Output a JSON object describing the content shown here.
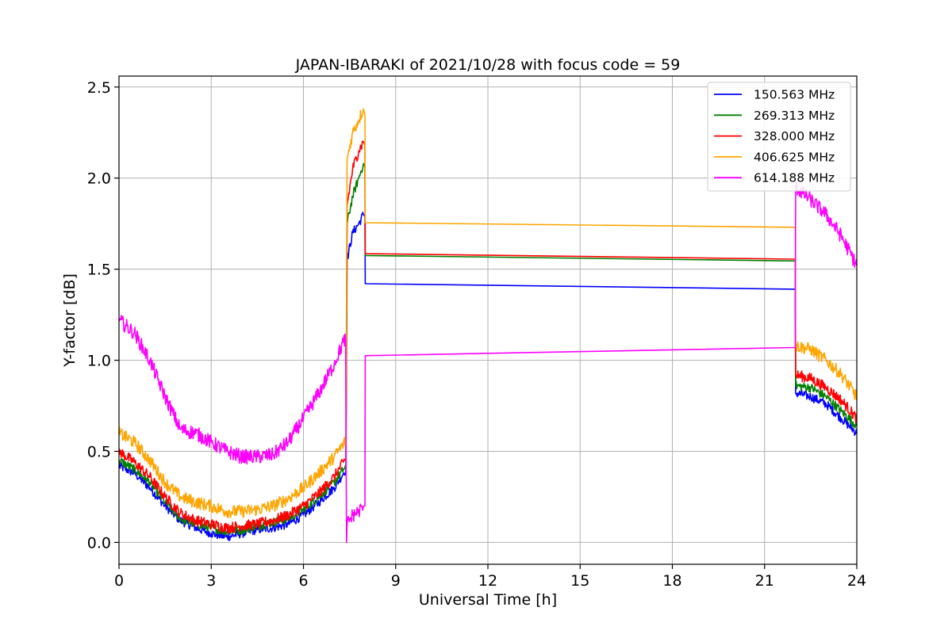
{
  "chart_data": {
    "type": "line",
    "title": "JAPAN-IBARAKI of 2021/10/28 with focus code = 59",
    "xlabel": "Universal Time [h]",
    "ylabel": "Y-factor [dB]",
    "xlim": [
      0,
      24
    ],
    "ylim": [
      -0.12,
      2.56
    ],
    "xticks": [
      0,
      3,
      6,
      9,
      12,
      15,
      18,
      21,
      24
    ],
    "xtick_labels": [
      "0",
      "3",
      "6",
      "9",
      "12",
      "15",
      "18",
      "21",
      "24"
    ],
    "yticks": [
      0.0,
      0.5,
      1.0,
      1.5,
      2.0,
      2.5
    ],
    "ytick_labels": [
      "0.0",
      "0.5",
      "1.0",
      "1.5",
      "2.0",
      "2.5"
    ],
    "grid": true,
    "legend_position": "top-right",
    "series": [
      {
        "name": "150.563 MHz",
        "color": "#0000ff",
        "noise": 0.025,
        "x": [
          0,
          0.5,
          1,
          1.5,
          2,
          2.5,
          3,
          3.5,
          4,
          4.5,
          5,
          5.5,
          6,
          6.5,
          7,
          7.3,
          7.38,
          7.42,
          7.6,
          7.8,
          7.95,
          8.0,
          8.01,
          22.0,
          22.01,
          22.5,
          23,
          23.5,
          24
        ],
        "y": [
          0.42,
          0.38,
          0.3,
          0.2,
          0.12,
          0.08,
          0.05,
          0.03,
          0.05,
          0.07,
          0.08,
          0.1,
          0.15,
          0.22,
          0.3,
          0.38,
          0.4,
          1.55,
          1.7,
          1.75,
          1.8,
          1.79,
          1.42,
          1.39,
          0.82,
          0.8,
          0.76,
          0.68,
          0.6
        ]
      },
      {
        "name": "269.313 MHz",
        "color": "#008000",
        "noise": 0.025,
        "x": [
          0,
          0.5,
          1,
          1.5,
          2,
          2.5,
          3,
          3.5,
          4,
          4.5,
          5,
          5.5,
          6,
          6.5,
          7,
          7.3,
          7.38,
          7.42,
          7.6,
          7.8,
          7.95,
          8.0,
          8.01,
          22.0,
          22.01,
          22.5,
          23,
          23.5,
          24
        ],
        "y": [
          0.45,
          0.4,
          0.33,
          0.22,
          0.13,
          0.1,
          0.08,
          0.06,
          0.07,
          0.09,
          0.11,
          0.13,
          0.18,
          0.25,
          0.33,
          0.4,
          0.42,
          1.75,
          1.9,
          2.0,
          2.08,
          2.06,
          1.575,
          1.545,
          0.86,
          0.85,
          0.8,
          0.72,
          0.64
        ]
      },
      {
        "name": "328.000 MHz",
        "color": "#ff0000",
        "noise": 0.03,
        "x": [
          0,
          0.5,
          1,
          1.5,
          2,
          2.5,
          3,
          3.5,
          4,
          4.5,
          5,
          5.5,
          6,
          6.5,
          7,
          7.3,
          7.38,
          7.42,
          7.6,
          7.8,
          7.95,
          8.0,
          8.01,
          22.0,
          22.01,
          22.5,
          23,
          23.5,
          24
        ],
        "y": [
          0.5,
          0.44,
          0.36,
          0.25,
          0.16,
          0.12,
          0.1,
          0.08,
          0.09,
          0.1,
          0.12,
          0.15,
          0.2,
          0.27,
          0.36,
          0.44,
          0.46,
          1.85,
          2.05,
          2.15,
          2.2,
          2.18,
          1.585,
          1.555,
          0.92,
          0.9,
          0.85,
          0.78,
          0.68
        ]
      },
      {
        "name": "406.625 MHz",
        "color": "#ffa500",
        "noise": 0.035,
        "x": [
          0,
          0.5,
          1,
          1.5,
          2,
          2.5,
          3,
          3.5,
          4,
          4.5,
          5,
          5.5,
          6,
          6.5,
          7,
          7.3,
          7.38,
          7.42,
          7.6,
          7.8,
          7.95,
          8.0,
          8.01,
          22.0,
          22.01,
          22.5,
          23,
          23.5,
          24
        ],
        "y": [
          0.6,
          0.55,
          0.45,
          0.33,
          0.25,
          0.22,
          0.2,
          0.17,
          0.17,
          0.18,
          0.2,
          0.24,
          0.3,
          0.38,
          0.47,
          0.54,
          0.56,
          2.1,
          2.25,
          2.32,
          2.38,
          2.35,
          1.755,
          1.73,
          1.08,
          1.06,
          1.0,
          0.92,
          0.8
        ]
      },
      {
        "name": "614.188 MHz",
        "color": "#ff00ff",
        "noise": 0.04,
        "x": [
          0,
          0.5,
          1,
          1.5,
          2,
          2.5,
          3,
          3.5,
          4,
          4.5,
          5,
          5.5,
          6,
          6.5,
          7,
          7.3,
          7.37,
          7.4,
          7.42,
          7.6,
          7.8,
          7.95,
          8.0,
          8.01,
          22.0,
          22.01,
          22.5,
          23,
          23.5,
          24
        ],
        "y": [
          1.22,
          1.15,
          1.0,
          0.8,
          0.62,
          0.6,
          0.55,
          0.5,
          0.47,
          0.47,
          0.48,
          0.55,
          0.68,
          0.82,
          0.98,
          1.1,
          1.12,
          0.0,
          0.1,
          0.15,
          0.17,
          0.2,
          0.2,
          1.025,
          1.07,
          1.95,
          1.88,
          1.8,
          1.68,
          1.52
        ]
      }
    ]
  }
}
